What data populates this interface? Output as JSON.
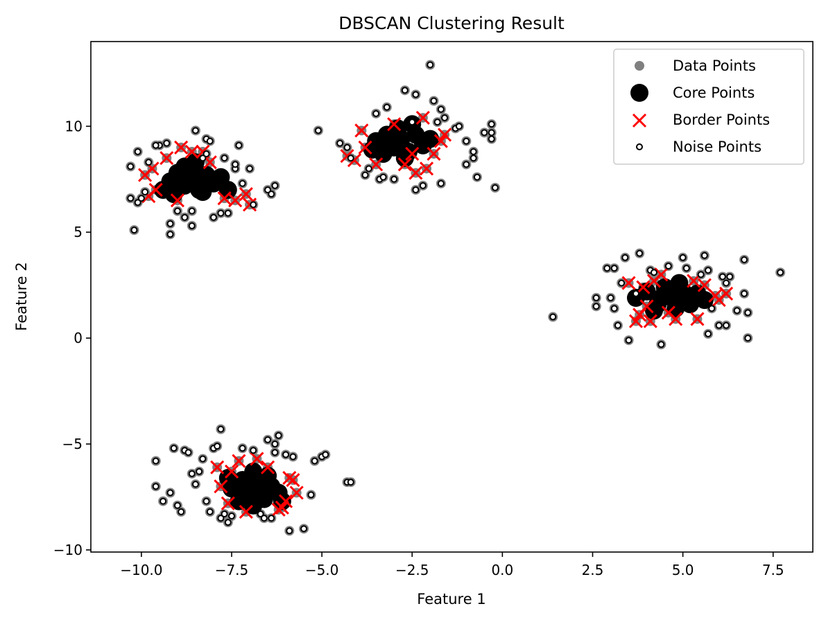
{
  "chart_data": {
    "type": "scatter",
    "title": "DBSCAN Clustering Result",
    "xlabel": "Feature 1",
    "ylabel": "Feature 2",
    "xlim": [
      -11.4,
      8.6
    ],
    "ylim": [
      -10.1,
      14.0
    ],
    "xticks": [
      -10.0,
      -7.5,
      -5.0,
      -2.5,
      0.0,
      2.5,
      5.0,
      7.5
    ],
    "xtick_labels": [
      "−10.0",
      "−7.5",
      "−5.0",
      "−2.5",
      "0.0",
      "2.5",
      "5.0",
      "7.5"
    ],
    "yticks": [
      -10,
      -5,
      0,
      5,
      10
    ],
    "ytick_labels": [
      "−10",
      "−5",
      "0",
      "5",
      "10"
    ],
    "grid": false,
    "legend": {
      "position": "top-right",
      "entries": [
        "Data Points",
        "Core Points",
        "Border Points",
        "Noise Points"
      ]
    },
    "colors": {
      "data": "#808080",
      "core": "#000000",
      "border": "#ff0000",
      "noise_edge": "#000000",
      "noise_fill": "#ffffff"
    },
    "series": [
      {
        "name": "Core Points",
        "marker": "large-circle",
        "points": [
          [
            -9.2,
            7.4
          ],
          [
            -9.0,
            7.8
          ],
          [
            -8.8,
            7.2
          ],
          [
            -8.6,
            7.6
          ],
          [
            -8.4,
            7.0
          ],
          [
            -8.2,
            7.7
          ],
          [
            -8.0,
            7.3
          ],
          [
            -8.8,
            8.1
          ],
          [
            -9.4,
            7.0
          ],
          [
            -8.5,
            8.3
          ],
          [
            -7.8,
            7.6
          ],
          [
            -8.3,
            6.9
          ],
          [
            -9.1,
            6.8
          ],
          [
            -8.7,
            7.5
          ],
          [
            -7.6,
            7.0
          ],
          [
            -3.5,
            9.3
          ],
          [
            -3.2,
            9.6
          ],
          [
            -3.0,
            9.0
          ],
          [
            -2.8,
            9.4
          ],
          [
            -2.6,
            8.8
          ],
          [
            -2.4,
            9.6
          ],
          [
            -2.2,
            9.1
          ],
          [
            -3.3,
            8.7
          ],
          [
            -2.9,
            9.9
          ],
          [
            -2.0,
            9.4
          ],
          [
            -3.1,
            9.4
          ],
          [
            -2.5,
            10.1
          ],
          [
            -2.7,
            8.5
          ],
          [
            -3.6,
            8.9
          ],
          [
            3.7,
            1.9
          ],
          [
            4.0,
            2.2
          ],
          [
            4.3,
            1.6
          ],
          [
            4.5,
            2.4
          ],
          [
            4.7,
            1.9
          ],
          [
            5.0,
            2.2
          ],
          [
            5.2,
            1.6
          ],
          [
            4.9,
            2.6
          ],
          [
            5.4,
            2.1
          ],
          [
            4.2,
            1.3
          ],
          [
            4.8,
            1.4
          ],
          [
            4.6,
            2.0
          ],
          [
            5.1,
            1.9
          ],
          [
            4.4,
            1.9
          ],
          [
            5.6,
            1.8
          ],
          [
            -7.5,
            -7.1
          ],
          [
            -7.2,
            -6.7
          ],
          [
            -7.0,
            -7.4
          ],
          [
            -6.8,
            -6.9
          ],
          [
            -6.6,
            -7.6
          ],
          [
            -6.4,
            -7.0
          ],
          [
            -7.3,
            -7.7
          ],
          [
            -6.9,
            -6.3
          ],
          [
            -6.2,
            -7.3
          ],
          [
            -7.1,
            -7.0
          ],
          [
            -6.7,
            -7.2
          ],
          [
            -7.6,
            -6.6
          ],
          [
            -6.5,
            -6.5
          ],
          [
            -6.1,
            -7.7
          ],
          [
            -6.9,
            -7.9
          ]
        ]
      },
      {
        "name": "Border Points",
        "marker": "x",
        "points": [
          [
            -9.9,
            7.7
          ],
          [
            -9.6,
            7.0
          ],
          [
            -9.3,
            8.5
          ],
          [
            -9.0,
            6.5
          ],
          [
            -8.9,
            9.0
          ],
          [
            -8.6,
            8.8
          ],
          [
            -8.1,
            8.3
          ],
          [
            -7.4,
            6.5
          ],
          [
            -7.1,
            6.8
          ],
          [
            -7.0,
            6.3
          ],
          [
            -9.7,
            8.0
          ],
          [
            -8.3,
            8.8
          ],
          [
            -7.7,
            6.6
          ],
          [
            -9.8,
            6.7
          ],
          [
            -4.1,
            8.4
          ],
          [
            -3.8,
            9.0
          ],
          [
            -3.5,
            8.2
          ],
          [
            -3.0,
            10.1
          ],
          [
            -2.7,
            8.2
          ],
          [
            -2.4,
            7.8
          ],
          [
            -2.2,
            10.4
          ],
          [
            -1.9,
            8.7
          ],
          [
            -1.7,
            9.3
          ],
          [
            -1.6,
            9.6
          ],
          [
            -3.9,
            9.8
          ],
          [
            -2.5,
            8.7
          ],
          [
            -2.1,
            8.0
          ],
          [
            -4.3,
            8.6
          ],
          [
            3.5,
            2.6
          ],
          [
            3.7,
            0.8
          ],
          [
            3.9,
            2.4
          ],
          [
            4.0,
            1.5
          ],
          [
            4.2,
            2.7
          ],
          [
            4.4,
            3.0
          ],
          [
            4.6,
            1.2
          ],
          [
            4.8,
            0.9
          ],
          [
            5.3,
            2.7
          ],
          [
            5.6,
            2.5
          ],
          [
            5.9,
            2.0
          ],
          [
            6.0,
            1.8
          ],
          [
            6.2,
            2.1
          ],
          [
            5.4,
            0.9
          ],
          [
            3.8,
            1.1
          ],
          [
            4.1,
            0.8
          ],
          [
            -7.9,
            -6.1
          ],
          [
            -7.6,
            -7.8
          ],
          [
            -7.3,
            -5.8
          ],
          [
            -7.1,
            -8.2
          ],
          [
            -6.8,
            -5.7
          ],
          [
            -6.5,
            -6.1
          ],
          [
            -6.2,
            -8.1
          ],
          [
            -5.9,
            -6.6
          ],
          [
            -5.7,
            -7.3
          ],
          [
            -5.8,
            -6.7
          ],
          [
            -6.1,
            -8.0
          ],
          [
            -7.8,
            -7.0
          ],
          [
            -7.5,
            -6.3
          ],
          [
            -6.0,
            -7.7
          ]
        ]
      },
      {
        "name": "Noise Points",
        "marker": "small-open-circle",
        "points": [
          [
            -10.3,
            8.1
          ],
          [
            -10.1,
            8.8
          ],
          [
            -10.0,
            6.6
          ],
          [
            -10.2,
            5.1
          ],
          [
            -9.8,
            8.3
          ],
          [
            -9.5,
            9.1
          ],
          [
            -9.3,
            9.2
          ],
          [
            -9.2,
            4.9
          ],
          [
            -9.2,
            5.4
          ],
          [
            -9.0,
            6.0
          ],
          [
            -8.8,
            5.7
          ],
          [
            -8.6,
            6.0
          ],
          [
            -8.5,
            9.8
          ],
          [
            -8.6,
            5.3
          ],
          [
            -8.3,
            8.5
          ],
          [
            -8.2,
            9.4
          ],
          [
            -8.1,
            9.3
          ],
          [
            -8.0,
            5.7
          ],
          [
            -7.8,
            5.9
          ],
          [
            -7.7,
            8.5
          ],
          [
            -7.6,
            5.9
          ],
          [
            -7.4,
            8.0
          ],
          [
            -7.3,
            9.1
          ],
          [
            -7.2,
            7.3
          ],
          [
            -7.0,
            8.0
          ],
          [
            -6.9,
            6.3
          ],
          [
            -6.5,
            7.0
          ],
          [
            -6.4,
            6.8
          ],
          [
            -6.3,
            7.2
          ],
          [
            -10.3,
            6.6
          ],
          [
            -9.9,
            6.9
          ],
          [
            -10.1,
            6.4
          ],
          [
            -9.6,
            9.1
          ],
          [
            -7.4,
            8.2
          ],
          [
            -8.2,
            8.7
          ],
          [
            -5.1,
            9.8
          ],
          [
            -4.5,
            9.2
          ],
          [
            -4.3,
            9.0
          ],
          [
            -4.2,
            8.5
          ],
          [
            -3.8,
            7.7
          ],
          [
            -3.7,
            8.0
          ],
          [
            -3.5,
            10.6
          ],
          [
            -3.4,
            7.5
          ],
          [
            -3.2,
            10.9
          ],
          [
            -3.3,
            7.6
          ],
          [
            -3.0,
            7.5
          ],
          [
            -2.7,
            11.7
          ],
          [
            -2.5,
            10.2
          ],
          [
            -2.4,
            11.5
          ],
          [
            -2.4,
            7.0
          ],
          [
            -2.2,
            7.2
          ],
          [
            -2.0,
            12.9
          ],
          [
            -1.9,
            11.2
          ],
          [
            -1.8,
            10.2
          ],
          [
            -1.7,
            10.8
          ],
          [
            -1.7,
            7.3
          ],
          [
            -1.6,
            10.4
          ],
          [
            -1.3,
            9.9
          ],
          [
            -1.2,
            10.0
          ],
          [
            -1.0,
            9.3
          ],
          [
            -1.0,
            8.2
          ],
          [
            -0.8,
            8.8
          ],
          [
            -0.8,
            8.5
          ],
          [
            -0.7,
            7.6
          ],
          [
            -0.5,
            9.7
          ],
          [
            -0.3,
            9.4
          ],
          [
            -0.3,
            10.1
          ],
          [
            -0.3,
            9.7
          ],
          [
            -0.2,
            7.1
          ],
          [
            1.4,
            1.0
          ],
          [
            2.6,
            1.5
          ],
          [
            2.6,
            1.9
          ],
          [
            2.9,
            3.3
          ],
          [
            3.0,
            1.9
          ],
          [
            3.1,
            3.3
          ],
          [
            3.1,
            1.4
          ],
          [
            3.2,
            0.6
          ],
          [
            3.3,
            2.6
          ],
          [
            3.4,
            3.8
          ],
          [
            3.5,
            -0.1
          ],
          [
            3.7,
            2.1
          ],
          [
            3.8,
            4.0
          ],
          [
            4.1,
            3.2
          ],
          [
            4.2,
            3.1
          ],
          [
            4.4,
            -0.3
          ],
          [
            4.6,
            3.4
          ],
          [
            5.0,
            3.8
          ],
          [
            5.1,
            3.3
          ],
          [
            5.5,
            3.0
          ],
          [
            5.6,
            3.9
          ],
          [
            5.7,
            3.2
          ],
          [
            5.7,
            0.2
          ],
          [
            5.8,
            1.4
          ],
          [
            6.0,
            0.6
          ],
          [
            6.1,
            2.9
          ],
          [
            6.2,
            0.6
          ],
          [
            6.2,
            2.6
          ],
          [
            6.3,
            2.9
          ],
          [
            6.5,
            1.3
          ],
          [
            6.7,
            3.7
          ],
          [
            6.7,
            2.1
          ],
          [
            6.8,
            1.2
          ],
          [
            6.8,
            0.0
          ],
          [
            7.7,
            3.1
          ],
          [
            -9.6,
            -5.8
          ],
          [
            -9.6,
            -7.0
          ],
          [
            -9.4,
            -7.7
          ],
          [
            -9.1,
            -5.2
          ],
          [
            -9.0,
            -7.9
          ],
          [
            -8.9,
            -8.2
          ],
          [
            -8.8,
            -5.3
          ],
          [
            -8.7,
            -5.4
          ],
          [
            -8.6,
            -6.4
          ],
          [
            -8.4,
            -6.3
          ],
          [
            -8.3,
            -5.7
          ],
          [
            -8.2,
            -7.7
          ],
          [
            -8.1,
            -8.2
          ],
          [
            -8.0,
            -5.2
          ],
          [
            -7.9,
            -5.1
          ],
          [
            -7.8,
            -4.3
          ],
          [
            -7.8,
            -8.5
          ],
          [
            -7.7,
            -8.3
          ],
          [
            -7.6,
            -8.7
          ],
          [
            -7.5,
            -8.4
          ],
          [
            -7.2,
            -5.2
          ],
          [
            -6.9,
            -5.3
          ],
          [
            -6.7,
            -8.3
          ],
          [
            -6.5,
            -4.8
          ],
          [
            -6.4,
            -8.5
          ],
          [
            -6.3,
            -5.0
          ],
          [
            -6.3,
            -5.4
          ],
          [
            -6.2,
            -4.6
          ],
          [
            -6.0,
            -5.5
          ],
          [
            -5.9,
            -9.1
          ],
          [
            -5.8,
            -5.6
          ],
          [
            -5.5,
            -9.0
          ],
          [
            -5.3,
            -7.4
          ],
          [
            -5.2,
            -5.8
          ],
          [
            -5.0,
            -5.6
          ],
          [
            -4.9,
            -5.5
          ],
          [
            -4.3,
            -6.8
          ],
          [
            -4.2,
            -6.8
          ],
          [
            -8.5,
            -6.9
          ],
          [
            -9.2,
            -7.3
          ],
          [
            -6.6,
            -8.5
          ]
        ]
      }
    ]
  }
}
